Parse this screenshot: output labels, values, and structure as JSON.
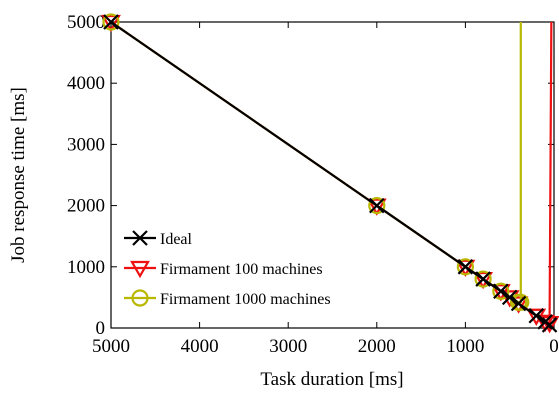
{
  "chart_data": {
    "type": "line",
    "xlabel": "Task duration [ms]",
    "ylabel": "Job response time [ms]",
    "xlim": [
      5000,
      0
    ],
    "ylim": [
      0,
      5000
    ],
    "x_reversed": true,
    "xticks": [
      5000,
      4000,
      3000,
      2000,
      1000,
      0
    ],
    "yticks": [
      0,
      1000,
      2000,
      3000,
      4000,
      5000
    ],
    "legend_position": "bottom-left",
    "series": [
      {
        "name": "Ideal",
        "color": "#000000",
        "marker": "x-cross",
        "x": [
          5000,
          2000,
          1000,
          800,
          600,
          500,
          400,
          200,
          100,
          50
        ],
        "y": [
          5000,
          2000,
          1000,
          800,
          600,
          500,
          400,
          200,
          100,
          50
        ]
      },
      {
        "name": "Firmament 100 machines",
        "color": "#ee1111",
        "marker": "triangle-down",
        "x": [
          5000,
          2000,
          1000,
          800,
          600,
          500,
          400,
          200,
          100,
          50,
          30
        ],
        "y": [
          5000,
          2000,
          1000,
          800,
          600,
          500,
          400,
          200,
          100,
          80,
          5000
        ]
      },
      {
        "name": "Firmament 1000 machines",
        "color": "#b8b800",
        "marker": "circle",
        "x": [
          5000,
          2000,
          1000,
          800,
          600,
          400,
          375,
          375
        ],
        "y": [
          5000,
          2000,
          1000,
          800,
          600,
          420,
          420,
          5000
        ]
      }
    ]
  }
}
